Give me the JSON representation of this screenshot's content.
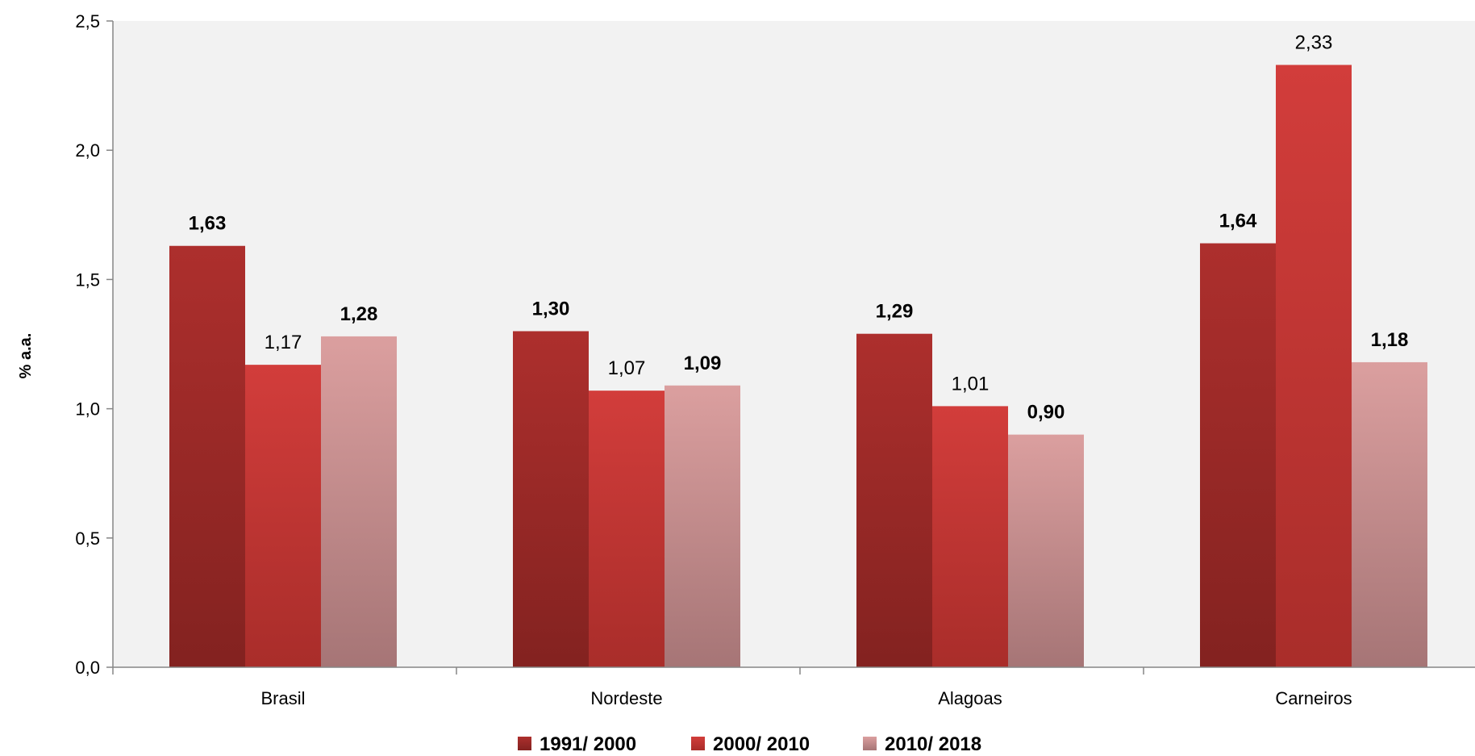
{
  "chart_data": {
    "type": "bar",
    "categories": [
      "Brasil",
      "Nordeste",
      "Alagoas",
      "Carneiros"
    ],
    "series": [
      {
        "name": "1991/ 2000",
        "values": [
          1.63,
          1.3,
          1.29,
          1.64
        ],
        "labels": [
          "1,63",
          "1,30",
          "1,29",
          "1,64"
        ],
        "label_bold": true,
        "color_top": "#ad2f2d",
        "color_bottom": "#832220"
      },
      {
        "name": "2000/ 2010",
        "values": [
          1.17,
          1.07,
          1.01,
          2.33
        ],
        "labels": [
          "1,17",
          "1,07",
          "1,01",
          "2,33"
        ],
        "label_bold": false,
        "color_top": "#d23d3b",
        "color_bottom": "#a92d2a"
      },
      {
        "name": "2010/ 2018",
        "values": [
          1.28,
          1.09,
          0.9,
          1.18
        ],
        "labels": [
          "1,28",
          "1,09",
          "0,90",
          "1,18"
        ],
        "label_bold": true,
        "color_top": "#db9f9f",
        "color_bottom": "#a67576"
      }
    ],
    "ylabel": "% a.a.",
    "ylim": [
      0,
      2.5
    ],
    "yticks": [
      0,
      0.5,
      1.0,
      1.5,
      2.0,
      2.5
    ],
    "ytick_labels": [
      "0,0",
      "0,5",
      "1,0",
      "1,5",
      "2,0",
      "2,5"
    ],
    "plot_background": "#f2f2f2",
    "grid": false,
    "legend_position": "bottom"
  }
}
